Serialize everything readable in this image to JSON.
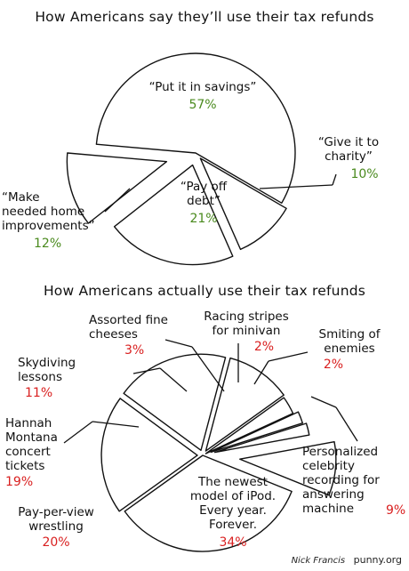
{
  "chart_data": [
    {
      "type": "pie",
      "title": "How Americans say they’ll use their tax refunds",
      "slices": [
        {
          "label": "“Put it in savings”",
          "value": 57,
          "display": "57%"
        },
        {
          "label": "“Give it to\ncharity”",
          "value": 10,
          "display": "10%"
        },
        {
          "label": "“Pay off\ndebt”",
          "value": 21,
          "display": "21%"
        },
        {
          "label": "“Make\nneeded home\nimprovements”",
          "value": 12,
          "display": "12%"
        }
      ],
      "label_color": "#4a8a1e"
    },
    {
      "type": "pie",
      "title": "How Americans actually use their tax refunds",
      "slices": [
        {
          "label": "The newest\nmodel of iPod.\nEvery year.\nForever.",
          "value": 34,
          "display": "34%"
        },
        {
          "label": "Pay-per-view\nwrestling",
          "value": 20,
          "display": "20%"
        },
        {
          "label": "Hannah\nMontana\nconcert\ntickets",
          "value": 19,
          "display": "19%"
        },
        {
          "label": "Skydiving\nlessons",
          "value": 11,
          "display": "11%"
        },
        {
          "label": "Assorted fine\ncheeses",
          "value": 3,
          "display": "3%"
        },
        {
          "label": "Racing stripes\nfor minivan",
          "value": 2,
          "display": "2%"
        },
        {
          "label": "Smiting of\nenemies",
          "value": 2,
          "display": "2%"
        },
        {
          "label": "Personalized\ncelebrity\nrecording for\nanswering\nmachine",
          "value": 9,
          "display": "9%"
        }
      ],
      "label_color": "#d92020"
    }
  ],
  "credit": {
    "signature": "Nick Francis",
    "site": "punny.org"
  }
}
